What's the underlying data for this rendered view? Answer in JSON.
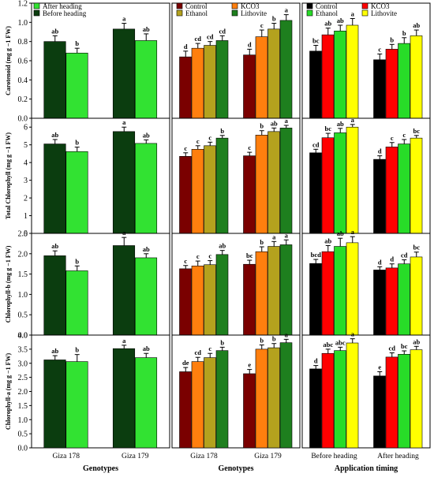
{
  "colors": {
    "before_heading": "#0b3d0f",
    "after_heading": "#32e232",
    "control_b": "#7a0000",
    "kco3_b": "#ff7f0e",
    "ethanol_b": "#b4a21e",
    "lithovite_b": "#1e7f1e",
    "control_c": "#000000",
    "kco3_c": "#ff0000",
    "ethanol_c": "#28dc28",
    "lithovite_c": "#ffff00"
  },
  "x_titles": [
    "Genotypes",
    "Genotypes",
    "Application timing"
  ],
  "chart_data": [
    {
      "type": "bar",
      "row": 0,
      "col": 0,
      "ylabel": "Carotenoid (mg g −1 FW)",
      "ylim": [
        0,
        1.2
      ],
      "yticks": [
        "0.0",
        "0.2",
        "0.4",
        "0.6",
        "0.8",
        "1.0",
        "1.2"
      ],
      "categories": [
        "Giza 178",
        "Giza 179"
      ],
      "legend": "top-left",
      "series": [
        {
          "name": "Before heading",
          "color": "before_heading",
          "values": [
            0.8,
            0.93
          ],
          "err": [
            0.06,
            0.06
          ],
          "labels": [
            "ab",
            "a"
          ]
        },
        {
          "name": "After heading",
          "color": "after_heading",
          "values": [
            0.68,
            0.81
          ],
          "err": [
            0.05,
            0.07
          ],
          "labels": [
            "b",
            "ab"
          ]
        }
      ]
    },
    {
      "type": "bar",
      "row": 0,
      "col": 1,
      "ylim": [
        0,
        1.2
      ],
      "categories": [
        "Giza 178",
        "Giza 179"
      ],
      "legend": "top",
      "series": [
        {
          "name": "Control",
          "color": "control_b",
          "values": [
            0.64,
            0.66
          ],
          "err": [
            0.06,
            0.06
          ],
          "labels": [
            "d",
            "d"
          ]
        },
        {
          "name": "KCO3",
          "color": "kco3_b",
          "values": [
            0.73,
            0.85
          ],
          "err": [
            0.05,
            0.07
          ],
          "labels": [
            "cd",
            "c"
          ]
        },
        {
          "name": "Ethanol",
          "color": "ethanol_b",
          "values": [
            0.76,
            0.93
          ],
          "err": [
            0.04,
            0.06
          ],
          "labels": [
            "cd",
            "b"
          ]
        },
        {
          "name": "Lithovite",
          "color": "lithovite_b",
          "values": [
            0.81,
            1.02
          ],
          "err": [
            0.05,
            0.06
          ],
          "labels": [
            "cd",
            "a"
          ]
        }
      ]
    },
    {
      "type": "bar",
      "row": 0,
      "col": 2,
      "ylim": [
        0,
        1.2
      ],
      "categories": [
        "Before heading",
        "After heading"
      ],
      "legend": "top",
      "series": [
        {
          "name": "Control",
          "color": "control_c",
          "values": [
            0.7,
            0.61
          ],
          "err": [
            0.06,
            0.06
          ],
          "labels": [
            "bc",
            "c"
          ]
        },
        {
          "name": "KCO3",
          "color": "kco3_c",
          "values": [
            0.87,
            0.72
          ],
          "err": [
            0.07,
            0.05
          ],
          "labels": [
            "ab",
            "b"
          ]
        },
        {
          "name": "Ethanol",
          "color": "ethanol_c",
          "values": [
            0.91,
            0.78
          ],
          "err": [
            0.06,
            0.06
          ],
          "labels": [
            "ab",
            "b"
          ]
        },
        {
          "name": "Lithovite",
          "color": "lithovite_c",
          "values": [
            0.97,
            0.86
          ],
          "err": [
            0.07,
            0.06
          ],
          "labels": [
            "a",
            "ab"
          ]
        }
      ]
    },
    {
      "type": "bar",
      "row": 1,
      "col": 0,
      "ylabel": "Total Chlorophyll (mg g −1 FW)",
      "ylim": [
        0,
        6.5
      ],
      "yticks": [
        "0",
        "1",
        "2",
        "3",
        "4",
        "5",
        "6"
      ],
      "categories": [
        "Giza 178",
        "Giza 179"
      ],
      "series": [
        {
          "name": "Before heading",
          "color": "before_heading",
          "values": [
            5.05,
            5.75
          ],
          "err": [
            0.25,
            0.25
          ],
          "labels": [
            "ab",
            "a"
          ]
        },
        {
          "name": "After heading",
          "color": "after_heading",
          "values": [
            4.62,
            5.08
          ],
          "err": [
            0.25,
            0.2
          ],
          "labels": [
            "b",
            "ab"
          ]
        }
      ]
    },
    {
      "type": "bar",
      "row": 1,
      "col": 1,
      "ylim": [
        0,
        6.5
      ],
      "categories": [
        "Giza 178",
        "Giza 179"
      ],
      "series": [
        {
          "name": "Control",
          "color": "control_b",
          "values": [
            4.35,
            4.38
          ],
          "err": [
            0.2,
            0.2
          ],
          "labels": [
            "c",
            "c"
          ]
        },
        {
          "name": "KCO3",
          "color": "kco3_b",
          "values": [
            4.75,
            5.55
          ],
          "err": [
            0.2,
            0.25
          ],
          "labels": [
            "c",
            "b"
          ]
        },
        {
          "name": "Ethanol",
          "color": "ethanol_b",
          "values": [
            4.95,
            5.75
          ],
          "err": [
            0.2,
            0.2
          ],
          "labels": [
            "c",
            "ab"
          ]
        },
        {
          "name": "Lithovite",
          "color": "lithovite_b",
          "values": [
            5.38,
            5.95
          ],
          "err": [
            0.15,
            0.15
          ],
          "labels": [
            "b",
            "a"
          ]
        }
      ]
    },
    {
      "type": "bar",
      "row": 1,
      "col": 2,
      "ylim": [
        0,
        6.5
      ],
      "categories": [
        "Before heading",
        "After heading"
      ],
      "series": [
        {
          "name": "Control",
          "color": "control_c",
          "values": [
            4.55,
            4.18
          ],
          "err": [
            0.2,
            0.2
          ],
          "labels": [
            "cd",
            "d"
          ]
        },
        {
          "name": "KCO3",
          "color": "kco3_c",
          "values": [
            5.4,
            4.88
          ],
          "err": [
            0.25,
            0.25
          ],
          "labels": [
            "bc",
            "c"
          ]
        },
        {
          "name": "Ethanol",
          "color": "ethanol_c",
          "values": [
            5.68,
            5.05
          ],
          "err": [
            0.25,
            0.25
          ],
          "labels": [
            "ab",
            "c"
          ]
        },
        {
          "name": "Lithovite",
          "color": "lithovite_c",
          "values": [
            6.0,
            5.38
          ],
          "err": [
            0.15,
            0.15
          ],
          "labels": [
            "a",
            "bc"
          ]
        }
      ]
    },
    {
      "type": "bar",
      "row": 2,
      "col": 0,
      "ylabel": "Chlorophyll-b (mg g −1 FW)",
      "ylim": [
        0,
        2.5
      ],
      "yticks": [
        "0.0",
        "0.5",
        "1.0",
        "1.5",
        "2.0",
        "2.5"
      ],
      "categories": [
        "Giza 178",
        "Giza 179"
      ],
      "series": [
        {
          "name": "Before heading",
          "color": "before_heading",
          "values": [
            1.95,
            2.2
          ],
          "err": [
            0.12,
            0.2
          ],
          "labels": [
            "ab",
            "a"
          ]
        },
        {
          "name": "After heading",
          "color": "after_heading",
          "values": [
            1.58,
            1.9
          ],
          "err": [
            0.12,
            0.1
          ],
          "labels": [
            "b",
            "ab"
          ]
        }
      ]
    },
    {
      "type": "bar",
      "row": 2,
      "col": 1,
      "ylim": [
        0,
        2.5
      ],
      "categories": [
        "Giza 178",
        "Giza 179"
      ],
      "series": [
        {
          "name": "Control",
          "color": "control_b",
          "values": [
            1.63,
            1.74
          ],
          "err": [
            0.08,
            0.1
          ],
          "labels": [
            "c",
            "bc"
          ]
        },
        {
          "name": "KCO3",
          "color": "kco3_b",
          "values": [
            1.7,
            2.05
          ],
          "err": [
            0.12,
            0.12
          ],
          "labels": [
            "c",
            "b"
          ]
        },
        {
          "name": "Ethanol",
          "color": "ethanol_b",
          "values": [
            1.73,
            2.18
          ],
          "err": [
            0.1,
            0.12
          ],
          "labels": [
            "c",
            "a"
          ]
        },
        {
          "name": "Lithovite",
          "color": "lithovite_b",
          "values": [
            1.98,
            2.22
          ],
          "err": [
            0.1,
            0.12
          ],
          "labels": [
            "ab",
            "a"
          ]
        }
      ]
    },
    {
      "type": "bar",
      "row": 2,
      "col": 2,
      "ylim": [
        0,
        2.5
      ],
      "categories": [
        "Before heading",
        "After heading"
      ],
      "series": [
        {
          "name": "Control",
          "color": "control_c",
          "values": [
            1.76,
            1.6
          ],
          "err": [
            0.1,
            0.08
          ],
          "labels": [
            "bcd",
            "d"
          ]
        },
        {
          "name": "KCO3",
          "color": "kco3_c",
          "values": [
            2.05,
            1.65
          ],
          "err": [
            0.15,
            0.1
          ],
          "labels": [
            "ab",
            "d"
          ]
        },
        {
          "name": "Ethanol",
          "color": "ethanol_c",
          "values": [
            2.18,
            1.75
          ],
          "err": [
            0.2,
            0.1
          ],
          "labels": [
            "ab",
            "cd"
          ]
        },
        {
          "name": "Lithovite",
          "color": "lithovite_c",
          "values": [
            2.27,
            1.92
          ],
          "err": [
            0.15,
            0.12
          ],
          "labels": [
            "a",
            "bc"
          ]
        }
      ]
    },
    {
      "type": "bar",
      "row": 3,
      "col": 0,
      "ylabel": "Chlorophyll-a (mg g −1 FW)",
      "ylim": [
        0,
        4.0
      ],
      "yticks": [
        "0.0",
        "0.5",
        "1.0",
        "1.5",
        "2.0",
        "2.5",
        "3.0",
        "3.5",
        "4.0"
      ],
      "categories": [
        "Giza 178",
        "Giza 179"
      ],
      "series": [
        {
          "name": "Before heading",
          "color": "before_heading",
          "values": [
            3.12,
            3.52
          ],
          "err": [
            0.15,
            0.12
          ],
          "labels": [
            "ab",
            "a"
          ]
        },
        {
          "name": "After heading",
          "color": "after_heading",
          "values": [
            3.06,
            3.2
          ],
          "err": [
            0.25,
            0.15
          ],
          "labels": [
            "b",
            "ab"
          ]
        }
      ]
    },
    {
      "type": "bar",
      "row": 3,
      "col": 1,
      "ylim": [
        0,
        4.0
      ],
      "categories": [
        "Giza 178",
        "Giza 179"
      ],
      "series": [
        {
          "name": "Control",
          "color": "control_b",
          "values": [
            2.7,
            2.63
          ],
          "err": [
            0.15,
            0.15
          ],
          "labels": [
            "de",
            "e"
          ]
        },
        {
          "name": "KCO3",
          "color": "kco3_b",
          "values": [
            3.06,
            3.5
          ],
          "err": [
            0.15,
            0.15
          ],
          "labels": [
            "cd",
            "b"
          ]
        },
        {
          "name": "Ethanol",
          "color": "ethanol_b",
          "values": [
            3.2,
            3.55
          ],
          "err": [
            0.15,
            0.15
          ],
          "labels": [
            "c",
            "b"
          ]
        },
        {
          "name": "Lithovite",
          "color": "lithovite_b",
          "values": [
            3.45,
            3.73
          ],
          "err": [
            0.12,
            0.12
          ],
          "labels": [
            "b",
            "a"
          ]
        }
      ]
    },
    {
      "type": "bar",
      "row": 3,
      "col": 2,
      "ylim": [
        0,
        4.0
      ],
      "categories": [
        "Before heading",
        "After heading"
      ],
      "series": [
        {
          "name": "Control",
          "color": "control_c",
          "values": [
            2.8,
            2.55
          ],
          "err": [
            0.12,
            0.15
          ],
          "labels": [
            "d",
            "e"
          ]
        },
        {
          "name": "KCO3",
          "color": "kco3_c",
          "values": [
            3.35,
            3.22
          ],
          "err": [
            0.15,
            0.15
          ],
          "labels": [
            "abc",
            "cd"
          ]
        },
        {
          "name": "Ethanol",
          "color": "ethanol_c",
          "values": [
            3.45,
            3.32
          ],
          "err": [
            0.12,
            0.12
          ],
          "labels": [
            "abc",
            "bc"
          ]
        },
        {
          "name": "Lithovite",
          "color": "lithovite_c",
          "values": [
            3.72,
            3.48
          ],
          "err": [
            0.15,
            0.12
          ],
          "labels": [
            "a",
            "ab"
          ]
        }
      ]
    }
  ]
}
